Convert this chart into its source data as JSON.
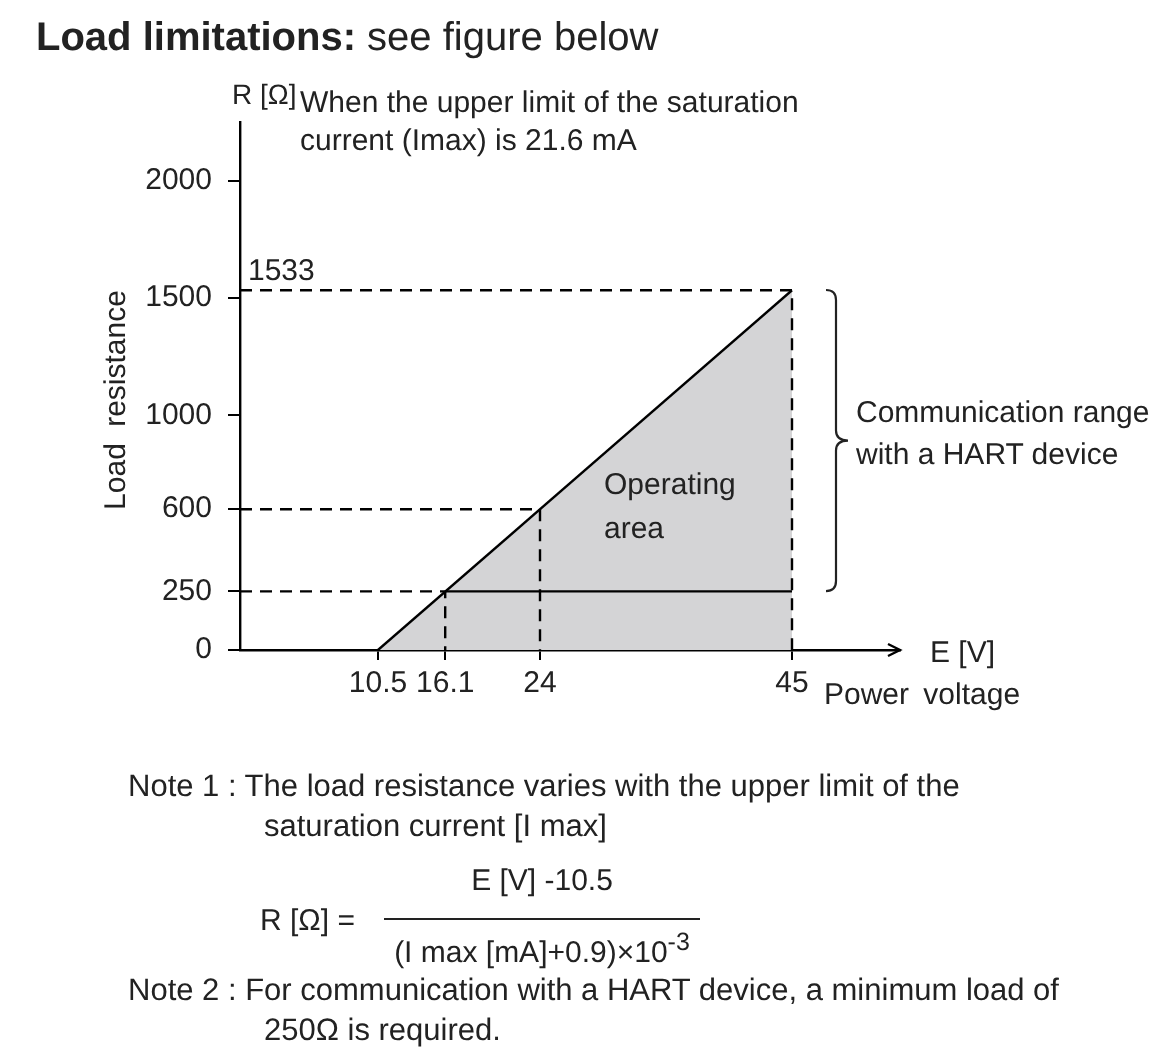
{
  "chart_data": {
    "type": "area",
    "title": "Load limitations: see figure below",
    "xlabel": "Power voltage",
    "ylabel": "Load resistance",
    "xlim": [
      -1,
      54
    ],
    "xticks": [
      10.5,
      16.1,
      24,
      45
    ],
    "ylim": [
      0,
      2250
    ],
    "yticks": [
      0,
      250,
      600,
      1000,
      1500,
      2000
    ],
    "grid": false,
    "legend": false,
    "marker": "none",
    "series": [
      {
        "color": "#d4d4d6",
        "x": [
          10.5,
          45
        ],
        "values": [
          0,
          1533
        ]
      },
      {
        "type": "line",
        "color": "#000000",
        "x": [
          16.1,
          45
        ],
        "values": [
          250,
          250
        ]
      },
      {
        "type": "line",
        "line_style": "dashed",
        "color": "#000000",
        "x": [
          -1,
          16.1,
          16.1
        ],
        "values": [
          250,
          250,
          0
        ]
      },
      {
        "type": "line",
        "line_style": "dashed",
        "color": "#000000",
        "x": [
          -1,
          24,
          24
        ],
        "values": [
          600,
          600,
          0
        ]
      },
      {
        "type": "line",
        "line_style": "dashed",
        "color": "#000000",
        "x": [
          -1,
          45,
          45
        ],
        "values": [
          1533,
          1533,
          0
        ]
      }
    ],
    "annotations": [
      "R [Ω]",
      "When the upper limit of the saturation current (Imax) is 21.6 mA",
      "Operating area",
      "Communication range with a HART device",
      "E [V]",
      {
        "text": "1533",
        "x": -1,
        "y": 1533
      },
      "Note 1 : The load resistance varies with the upper limit of the saturation current [I max]",
      "R [Ω] =",
      "E [V] -10.5",
      "(I max [mA]+0.9)×10$^{-3}$",
      "Note 2 : For communication with a HART device, a minimum load of 250Ω is required."
    ]
  }
}
